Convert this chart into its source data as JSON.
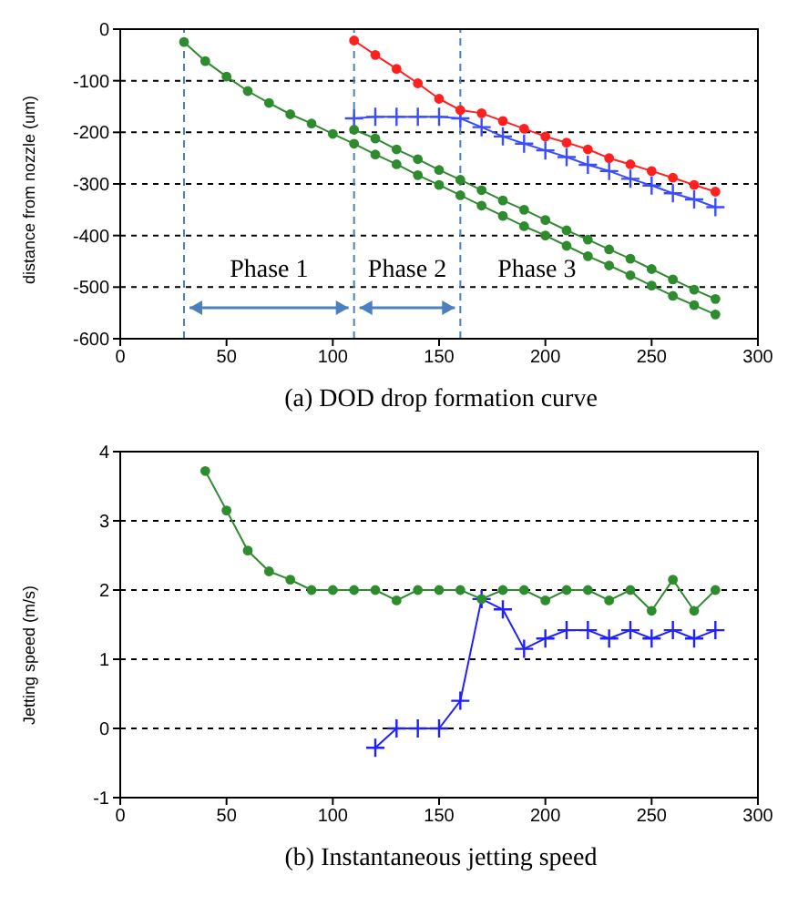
{
  "chart_data": [
    {
      "type": "line",
      "title": "(a) DOD drop formation curve",
      "ylabel": "distance from nozzle (um)",
      "xlim": [
        0,
        300
      ],
      "xticks": [
        0,
        50,
        100,
        150,
        200,
        250,
        300
      ],
      "ylim": [
        -600,
        0
      ],
      "yticks": [
        -600,
        -500,
        -400,
        -300,
        -200,
        -100,
        0
      ],
      "grid": "y",
      "line_style": "solid",
      "series": [
        {
          "color": "#2e8b2e",
          "marker": "circle",
          "x": [
            30,
            40,
            50,
            60,
            70,
            80,
            90,
            100,
            110,
            120,
            130,
            140,
            150,
            160,
            170,
            180,
            190,
            200,
            210,
            220,
            230,
            240,
            250,
            260,
            270,
            280
          ],
          "values": [
            -25,
            -62,
            -92,
            -120,
            -143,
            -165,
            -183,
            -203,
            -222,
            -243,
            -262,
            -283,
            -302,
            -322,
            -342,
            -362,
            -382,
            -400,
            -420,
            -440,
            -458,
            -477,
            -497,
            -517,
            -535,
            -553
          ]
        },
        {
          "color": "#2e8b2e",
          "marker": "circle",
          "x": [
            110,
            120,
            130,
            140,
            150,
            160,
            170,
            180,
            190,
            200,
            210,
            220,
            230,
            240,
            250,
            260,
            270,
            280
          ],
          "values": [
            -195,
            -212,
            -233,
            -252,
            -273,
            -292,
            -312,
            -332,
            -350,
            -370,
            -390,
            -408,
            -427,
            -445,
            -465,
            -485,
            -505,
            -523
          ]
        },
        {
          "color": "#ff2020",
          "marker": "circle",
          "x": [
            110,
            120,
            130,
            140,
            150,
            160,
            170,
            180,
            190,
            200,
            210,
            220,
            230,
            240,
            250,
            260,
            270,
            280
          ],
          "values": [
            -22,
            -50,
            -77,
            -105,
            -135,
            -157,
            -163,
            -178,
            -193,
            -208,
            -220,
            -233,
            -250,
            -262,
            -275,
            -288,
            -302,
            -315
          ]
        },
        {
          "color": "#3a4cff",
          "marker": "cross",
          "x": [
            110,
            120,
            130,
            140,
            150,
            160,
            170,
            180,
            190,
            200,
            210,
            220,
            230,
            240,
            250,
            260,
            270,
            280
          ],
          "values": [
            -173,
            -170,
            -170,
            -170,
            -170,
            -173,
            -190,
            -208,
            -222,
            -235,
            -248,
            -263,
            -275,
            -290,
            -303,
            -318,
            -330,
            -345
          ]
        }
      ],
      "ref_lines": [
        {
          "axis": "x",
          "value": 30,
          "color": "#4a7fc0",
          "line_style": "dashed"
        },
        {
          "axis": "x",
          "value": 110,
          "color": "#4a7fc0",
          "line_style": "dashed"
        },
        {
          "axis": "x",
          "value": 160,
          "color": "#4a7fc0",
          "line_style": "dashed"
        }
      ],
      "annotations": [
        {
          "text": "Phase 1",
          "x": 110,
          "y": -540
        },
        {
          "text": "Phase 2",
          "x": 160,
          "y": -540
        },
        "Phase 3"
      ]
    },
    {
      "type": "line",
      "title": "(b) Instantaneous jetting speed",
      "ylabel": "Jetting speed (m/s)",
      "xlim": [
        0,
        300
      ],
      "xticks": [
        0,
        50,
        100,
        150,
        200,
        250,
        300
      ],
      "ylim": [
        -1,
        4
      ],
      "yticks": [
        -1,
        0,
        1,
        2,
        3,
        4
      ],
      "grid": "y",
      "line_style": "solid",
      "series": [
        {
          "color": "#2e8b2e",
          "marker": "circle",
          "x": [
            40,
            50,
            60,
            70,
            80,
            90,
            100,
            110,
            120,
            130,
            140,
            150,
            160,
            170,
            180,
            190,
            200,
            210,
            220,
            230,
            240,
            250,
            260,
            270,
            280
          ],
          "values": [
            3.72,
            3.15,
            2.57,
            2.27,
            2.15,
            2.0,
            2.0,
            2.0,
            2.0,
            1.85,
            2.0,
            2.0,
            2.0,
            1.87,
            2.0,
            2.0,
            1.85,
            2.0,
            2.0,
            1.85,
            2.0,
            1.7,
            2.15,
            1.7,
            2.0
          ]
        },
        {
          "color": "#2020ff",
          "marker": "cross",
          "x": [
            120,
            130,
            140,
            150,
            160,
            170,
            180,
            190,
            200,
            210,
            220,
            230,
            240,
            250,
            260,
            270,
            280
          ],
          "values": [
            -0.28,
            0,
            0,
            0,
            0.4,
            1.87,
            1.72,
            1.15,
            1.3,
            1.42,
            1.42,
            1.3,
            1.42,
            1.3,
            1.42,
            1.3,
            1.42
          ]
        }
      ]
    }
  ]
}
